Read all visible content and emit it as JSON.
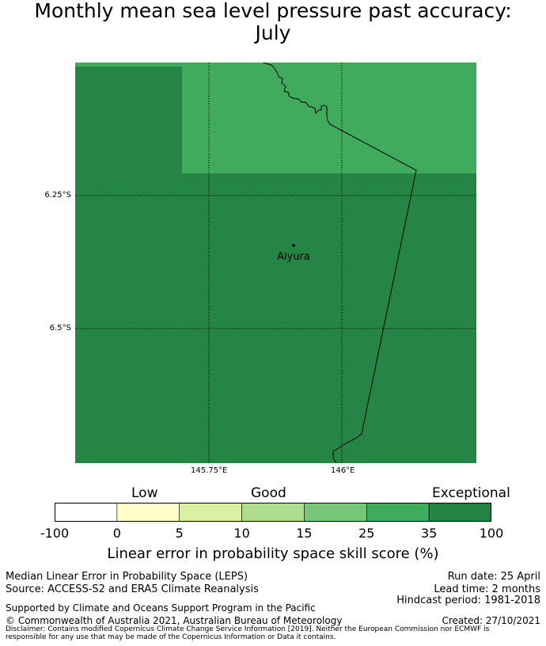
{
  "title": {
    "line1": "Monthly mean sea level pressure past accuracy:",
    "line2": "July"
  },
  "map": {
    "location_label": "Aiyura",
    "lat_labels": [
      "6.25°S",
      "6.5°S"
    ],
    "lon_labels": [
      "145.75°E",
      "146°E"
    ],
    "colors": {
      "exceptional_dark": "#248545",
      "exceptional_light": "#41ab5d"
    }
  },
  "legend": {
    "categories": [
      "Low",
      "Good",
      "Exceptional"
    ],
    "ticks": [
      "-100",
      "0",
      "5",
      "10",
      "15",
      "25",
      "35",
      "100"
    ],
    "colors": [
      "#ffffff",
      "#ffffcc",
      "#d9f0a3",
      "#addd8e",
      "#78c679",
      "#41ab5d",
      "#238443"
    ],
    "title": "Linear error in probability space skill score (%)"
  },
  "footer": {
    "left1": "Median Linear Error in Probability Space (LEPS)",
    "left2": "Source: ACCESS-S2 and ERA5 Climate Reanalysis",
    "right1": "Run date: 25 April",
    "right2": "Lead time: 2 months",
    "right3": "Hindcast period: 1981-2018",
    "support": "Supported by Climate and Oceans Support Program in the Pacific",
    "copyright": "© Commonwealth of Australia 2021, Australian Bureau of Meteorology",
    "created": "Created: 27/10/2021",
    "disclaimer": "Disclaimer: Contains modified Copernicus Climate Change Service Information [2019]. Neither the European Commission nor ECMWF is responsible for any use that may be made of the Copernicus Information or Data it contains."
  }
}
